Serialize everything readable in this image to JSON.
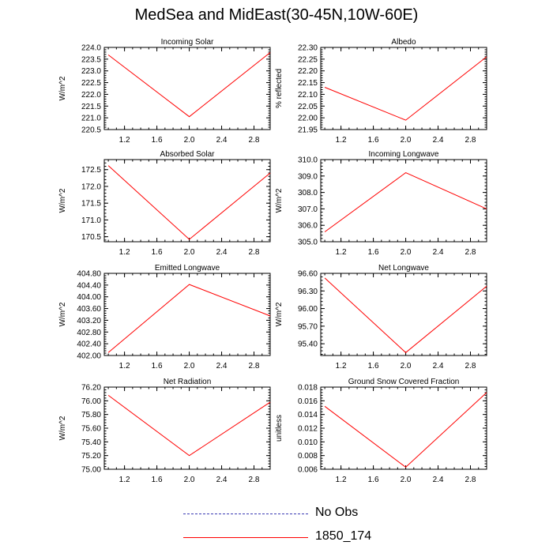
{
  "title": "MedSea and MidEast(30-45N,10W-60E)",
  "colors": {
    "series": "#ff0000",
    "obs": "#3b3bb3",
    "axis": "#000000"
  },
  "legend": [
    {
      "label": "No Obs",
      "style": "dashed",
      "color": "#3b3bb3"
    },
    {
      "label": "1850_174",
      "style": "solid",
      "color": "#ff0000"
    }
  ],
  "chart_data": [
    {
      "type": "line",
      "title": "Incoming Solar",
      "ylabel": "W/m^2",
      "xlim": [
        0.95,
        3.0
      ],
      "xticks": [
        "1.2",
        "1.6",
        "2.0",
        "2.4",
        "2.8"
      ],
      "ylim": [
        220.5,
        224.0
      ],
      "yticks": [
        "220.5",
        "221.0",
        "221.5",
        "222.0",
        "222.5",
        "223.0",
        "223.5",
        "224.0"
      ],
      "x": [
        1,
        2,
        3
      ],
      "series": [
        {
          "name": "1850_174",
          "values": [
            223.68,
            221.05,
            223.78
          ]
        }
      ]
    },
    {
      "type": "line",
      "title": "Albedo",
      "ylabel": "% reflected",
      "xlim": [
        0.95,
        3.0
      ],
      "xticks": [
        "1.2",
        "1.6",
        "2.0",
        "2.4",
        "2.8"
      ],
      "ylim": [
        21.95,
        22.3
      ],
      "yticks": [
        "21.95",
        "22.00",
        "22.05",
        "22.10",
        "22.15",
        "22.20",
        "22.25",
        "22.30"
      ],
      "x": [
        1,
        2,
        3
      ],
      "series": [
        {
          "name": "1850_174",
          "values": [
            22.13,
            21.99,
            22.26
          ]
        }
      ]
    },
    {
      "type": "line",
      "title": "Absorbed Solar",
      "ylabel": "W/m^2",
      "xlim": [
        0.95,
        3.0
      ],
      "xticks": [
        "1.2",
        "1.6",
        "2.0",
        "2.4",
        "2.8"
      ],
      "ylim": [
        170.35,
        172.8
      ],
      "yticks": [
        "170.5",
        "171.0",
        "171.5",
        "172.0",
        "172.5"
      ],
      "x": [
        1,
        2,
        3
      ],
      "series": [
        {
          "name": "1850_174",
          "values": [
            172.62,
            170.42,
            172.4
          ]
        }
      ]
    },
    {
      "type": "line",
      "title": "Incoming Longwave",
      "ylabel": "W/m^2",
      "xlim": [
        0.95,
        3.0
      ],
      "xticks": [
        "1.2",
        "1.6",
        "2.0",
        "2.4",
        "2.8"
      ],
      "ylim": [
        305.0,
        310.0
      ],
      "yticks": [
        "305.0",
        "306.0",
        "307.0",
        "308.0",
        "309.0",
        "310.0"
      ],
      "x": [
        1,
        2,
        3
      ],
      "series": [
        {
          "name": "1850_174",
          "values": [
            305.6,
            309.2,
            307.0
          ]
        }
      ]
    },
    {
      "type": "line",
      "title": "Emitted Longwave",
      "ylabel": "W/m^2",
      "xlim": [
        0.95,
        3.0
      ],
      "xticks": [
        "1.2",
        "1.6",
        "2.0",
        "2.4",
        "2.8"
      ],
      "ylim": [
        402.0,
        404.8
      ],
      "yticks": [
        "402.00",
        "402.40",
        "402.80",
        "403.20",
        "403.60",
        "404.00",
        "404.40",
        "404.80"
      ],
      "x": [
        1,
        2,
        3
      ],
      "series": [
        {
          "name": "1850_174",
          "values": [
            402.1,
            404.42,
            403.35
          ]
        }
      ]
    },
    {
      "type": "line",
      "title": "Net Longwave",
      "ylabel": "W/m^2",
      "xlim": [
        0.95,
        3.0
      ],
      "xticks": [
        "1.2",
        "1.6",
        "2.0",
        "2.4",
        "2.8"
      ],
      "ylim": [
        95.2,
        96.6
      ],
      "yticks": [
        "95.40",
        "95.70",
        "96.00",
        "96.30",
        "96.60"
      ],
      "x": [
        1,
        2,
        3
      ],
      "series": [
        {
          "name": "1850_174",
          "values": [
            96.52,
            95.25,
            96.38
          ]
        }
      ]
    },
    {
      "type": "line",
      "title": "Net Radiation",
      "ylabel": "W/m^2",
      "xlim": [
        0.95,
        3.0
      ],
      "xticks": [
        "1.2",
        "1.6",
        "2.0",
        "2.4",
        "2.8"
      ],
      "ylim": [
        75.0,
        76.2
      ],
      "yticks": [
        "75.00",
        "75.20",
        "75.40",
        "75.60",
        "75.80",
        "76.00",
        "76.20"
      ],
      "x": [
        1,
        2,
        3
      ],
      "series": [
        {
          "name": "1850_174",
          "values": [
            76.08,
            75.2,
            75.98
          ]
        }
      ]
    },
    {
      "type": "line",
      "title": "Ground Snow Covered Fraction",
      "ylabel": "unitless",
      "xlim": [
        0.95,
        3.0
      ],
      "xticks": [
        "1.2",
        "1.6",
        "2.0",
        "2.4",
        "2.8"
      ],
      "ylim": [
        0.006,
        0.018
      ],
      "yticks": [
        "0.006",
        "0.008",
        "0.010",
        "0.012",
        "0.014",
        "0.016",
        "0.018"
      ],
      "x": [
        1,
        2,
        3
      ],
      "series": [
        {
          "name": "1850_174",
          "values": [
            0.0152,
            0.0063,
            0.0172
          ]
        }
      ]
    }
  ]
}
